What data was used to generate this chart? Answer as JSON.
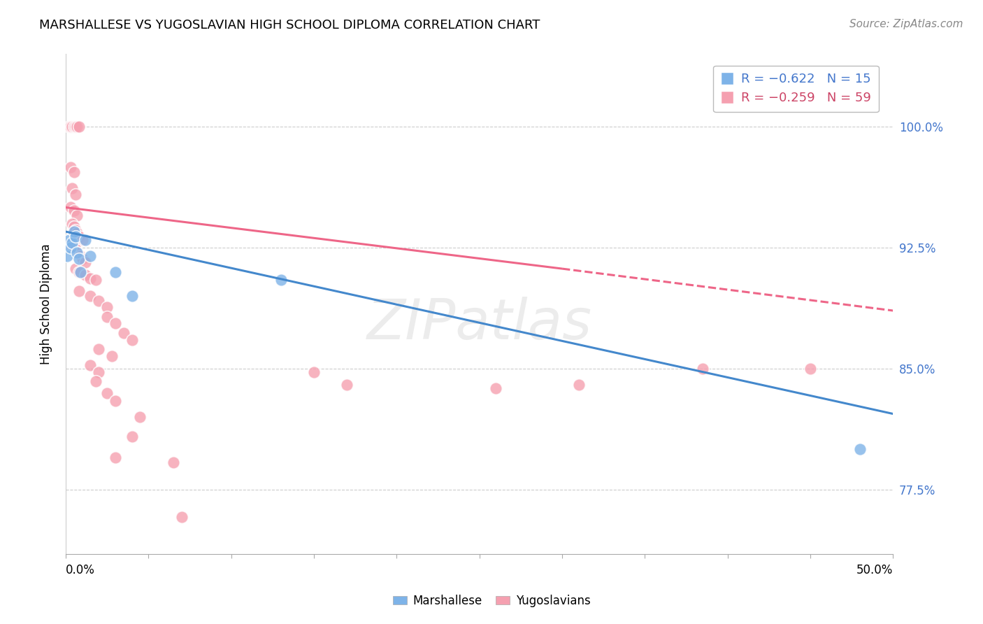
{
  "title": "MARSHALLESE VS YUGOSLAVIAN HIGH SCHOOL DIPLOMA CORRELATION CHART",
  "source": "Source: ZipAtlas.com",
  "ylabel": "High School Diploma",
  "ytick_labels": [
    "100.0%",
    "92.5%",
    "85.0%",
    "77.5%"
  ],
  "ytick_values": [
    1.0,
    0.925,
    0.85,
    0.775
  ],
  "xlim": [
    0.0,
    0.5
  ],
  "ylim": [
    0.735,
    1.045
  ],
  "blue_color": "#7EB3E8",
  "pink_color": "#F5A0B0",
  "blue_label": "Marshallese",
  "pink_label": "Yugoslavians",
  "watermark": "ZIPatlas",
  "blue_points": [
    [
      0.001,
      0.92
    ],
    [
      0.002,
      0.93
    ],
    [
      0.003,
      0.925
    ],
    [
      0.004,
      0.928
    ],
    [
      0.005,
      0.935
    ],
    [
      0.006,
      0.932
    ],
    [
      0.007,
      0.922
    ],
    [
      0.008,
      0.918
    ],
    [
      0.009,
      0.91
    ],
    [
      0.012,
      0.93
    ],
    [
      0.015,
      0.92
    ],
    [
      0.03,
      0.91
    ],
    [
      0.04,
      0.895
    ],
    [
      0.13,
      0.905
    ],
    [
      0.48,
      0.8
    ]
  ],
  "pink_points": [
    [
      0.002,
      1.0
    ],
    [
      0.003,
      1.0
    ],
    [
      0.004,
      1.0
    ],
    [
      0.005,
      1.0
    ],
    [
      0.006,
      1.0
    ],
    [
      0.007,
      1.0
    ],
    [
      0.008,
      1.0
    ],
    [
      0.003,
      0.975
    ],
    [
      0.005,
      0.972
    ],
    [
      0.004,
      0.962
    ],
    [
      0.006,
      0.958
    ],
    [
      0.003,
      0.95
    ],
    [
      0.005,
      0.948
    ],
    [
      0.007,
      0.945
    ],
    [
      0.004,
      0.94
    ],
    [
      0.005,
      0.938
    ],
    [
      0.006,
      0.936
    ],
    [
      0.007,
      0.934
    ],
    [
      0.008,
      0.932
    ],
    [
      0.01,
      0.93
    ],
    [
      0.003,
      0.928
    ],
    [
      0.004,
      0.926
    ],
    [
      0.005,
      0.925
    ],
    [
      0.006,
      0.924
    ],
    [
      0.007,
      0.922
    ],
    [
      0.009,
      0.92
    ],
    [
      0.01,
      0.918
    ],
    [
      0.012,
      0.916
    ],
    [
      0.006,
      0.912
    ],
    [
      0.008,
      0.91
    ],
    [
      0.012,
      0.908
    ],
    [
      0.015,
      0.906
    ],
    [
      0.018,
      0.905
    ],
    [
      0.008,
      0.898
    ],
    [
      0.015,
      0.895
    ],
    [
      0.02,
      0.892
    ],
    [
      0.025,
      0.888
    ],
    [
      0.025,
      0.882
    ],
    [
      0.03,
      0.878
    ],
    [
      0.035,
      0.872
    ],
    [
      0.04,
      0.868
    ],
    [
      0.02,
      0.862
    ],
    [
      0.028,
      0.858
    ],
    [
      0.015,
      0.852
    ],
    [
      0.02,
      0.848
    ],
    [
      0.018,
      0.842
    ],
    [
      0.025,
      0.835
    ],
    [
      0.03,
      0.83
    ],
    [
      0.045,
      0.82
    ],
    [
      0.04,
      0.808
    ],
    [
      0.03,
      0.795
    ],
    [
      0.065,
      0.792
    ],
    [
      0.15,
      0.848
    ],
    [
      0.17,
      0.84
    ],
    [
      0.26,
      0.838
    ],
    [
      0.31,
      0.84
    ],
    [
      0.385,
      0.85
    ],
    [
      0.45,
      0.85
    ],
    [
      0.07,
      0.758
    ]
  ],
  "blue_line": {
    "x0": 0.0,
    "y0": 0.935,
    "x1": 0.5,
    "y1": 0.822
  },
  "pink_line_solid_x0": 0.0,
  "pink_line_solid_y0": 0.95,
  "pink_line_solid_x1": 0.3,
  "pink_line_solid_y1": 0.912,
  "pink_line_dashed_x0": 0.3,
  "pink_line_dashed_y0": 0.912,
  "pink_line_dashed_x1": 0.5,
  "pink_line_dashed_y1": 0.886
}
